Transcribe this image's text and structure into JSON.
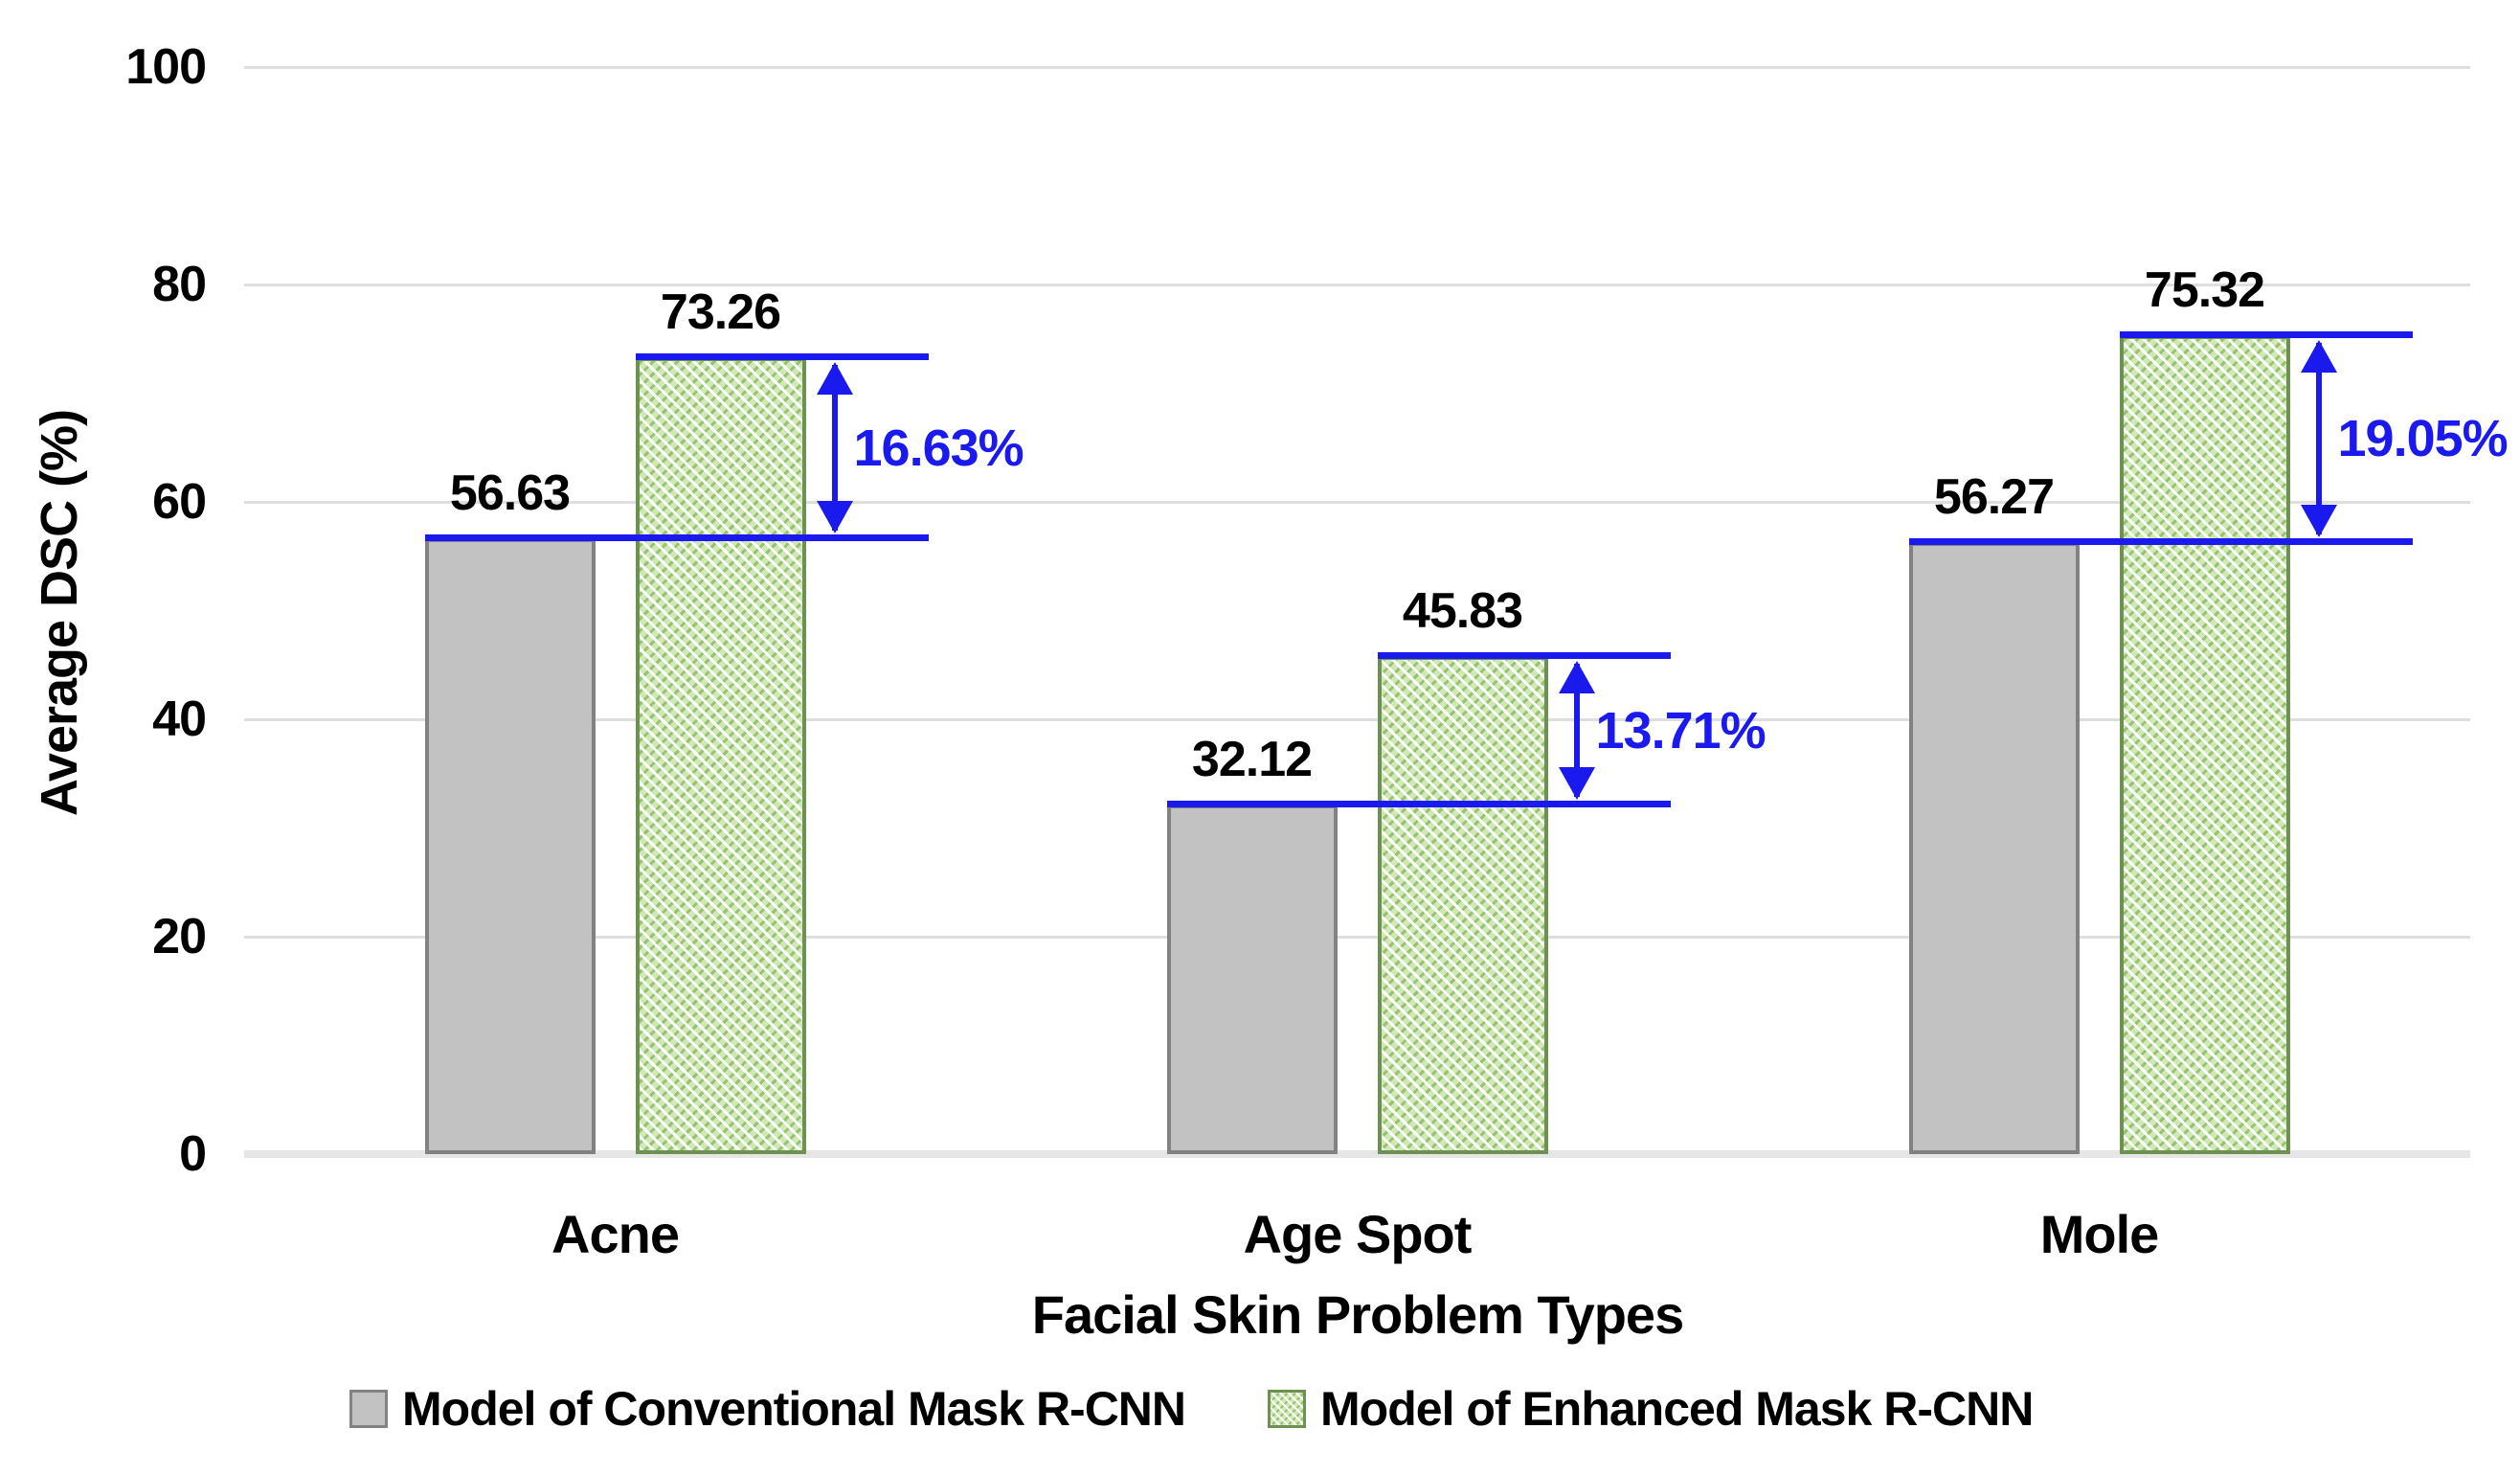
{
  "chart_data": {
    "type": "bar",
    "title": "",
    "xlabel": "Facial Skin Problem Types",
    "ylabel": "Average DSC (%)",
    "ylim": [
      0,
      100
    ],
    "yticks": [
      0,
      20,
      40,
      60,
      80,
      100
    ],
    "grid": true,
    "legend_position": "bottom",
    "categories": [
      "Acne",
      "Age Spot",
      "Mole"
    ],
    "series": [
      {
        "name": "Model of Conventional Mask R-CNN",
        "values": [
          56.63,
          32.12,
          56.27
        ],
        "value_labels": [
          "56.63",
          "32.12",
          "56.27"
        ],
        "style": "solid-gray"
      },
      {
        "name": "Model of Enhanced Mask R-CNN",
        "values": [
          73.26,
          45.83,
          75.32
        ],
        "value_labels": [
          "73.26",
          "45.83",
          "75.32"
        ],
        "style": "green-crosshatch"
      }
    ],
    "difference_annotations": [
      {
        "category": "Acne",
        "label": "16.63%"
      },
      {
        "category": "Age Spot",
        "label": "13.71%"
      },
      {
        "category": "Mole",
        "label": "19.05%"
      }
    ],
    "colors": {
      "conventional_fill": "#c2c2c2",
      "conventional_border": "#828282",
      "enhanced_fill": "#cfe9b4",
      "enhanced_border": "#6c9150",
      "annotation_blue": "#1a1aee",
      "gridline": "#dedede",
      "text": "#000000"
    }
  }
}
